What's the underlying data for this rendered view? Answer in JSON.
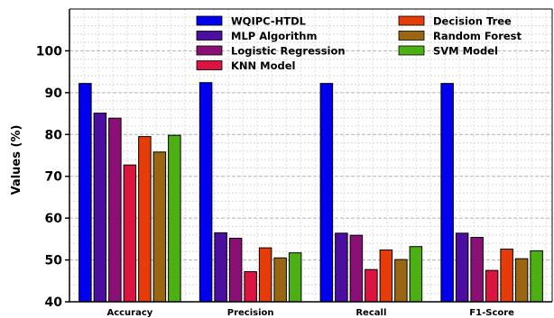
{
  "chart_data": {
    "type": "bar",
    "title": "",
    "xlabel": "",
    "ylabel": "Values (%)",
    "ylim": [
      40,
      110
    ],
    "yticks": [
      40,
      50,
      60,
      70,
      80,
      90,
      100
    ],
    "grid": true,
    "legend_position": "top-right",
    "categories": [
      "Accuracy",
      "Precision",
      "Recall",
      "F1-Score"
    ],
    "series": [
      {
        "name": "WQIPC-HTDL",
        "color": "#0000ee",
        "values": [
          92.2,
          92.4,
          92.2,
          92.2
        ]
      },
      {
        "name": "MLP Algorithm",
        "color": "#4b0ea0",
        "values": [
          85.1,
          56.5,
          56.4,
          56.4
        ]
      },
      {
        "name": "Logistic Regression",
        "color": "#8b1075",
        "values": [
          83.9,
          55.2,
          55.9,
          55.4
        ]
      },
      {
        "name": "KNN Model",
        "color": "#dc1440",
        "values": [
          72.7,
          47.2,
          47.7,
          47.5
        ]
      },
      {
        "name": "Decision Tree",
        "color": "#e63c0a",
        "values": [
          79.5,
          52.9,
          52.4,
          52.6
        ]
      },
      {
        "name": "Random Forest",
        "color": "#9a6612",
        "values": [
          75.8,
          50.5,
          50.1,
          50.3
        ]
      },
      {
        "name": "SVM Model",
        "color": "#4caf12",
        "values": [
          79.8,
          51.7,
          53.2,
          52.2
        ]
      }
    ]
  }
}
